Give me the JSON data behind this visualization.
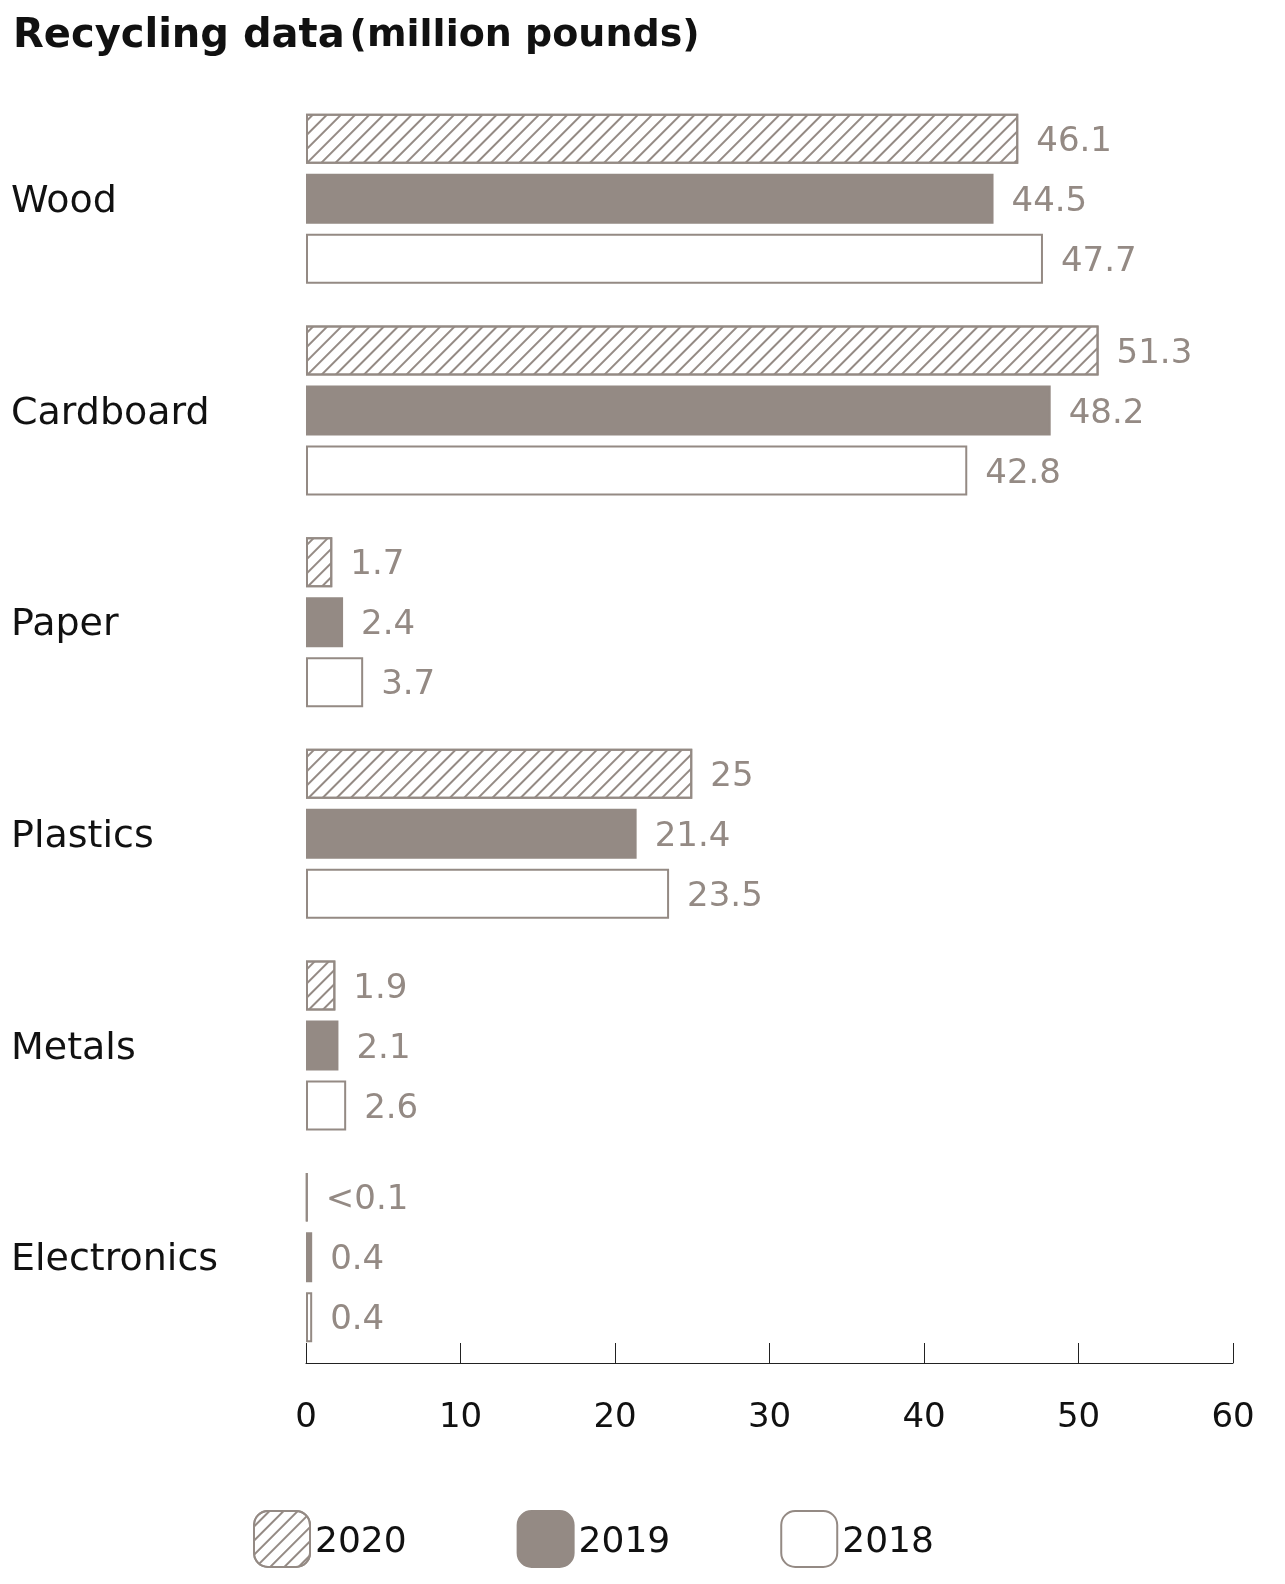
{
  "chart_data": {
    "type": "bar",
    "orientation": "horizontal",
    "title": "Recycling data",
    "subtitle": "(million pounds)",
    "categories": [
      "Wood",
      "Cardboard",
      "Paper",
      "Plastics",
      "Metals",
      "Electronics"
    ],
    "series": [
      {
        "name": "2020",
        "color": "#948a84",
        "values": [
          46.1,
          51.3,
          1.7,
          25,
          1.9,
          0.1
        ],
        "value_labels": [
          "46.1",
          "51.3",
          "1.7",
          "25",
          "1.9",
          "<0.1"
        ]
      },
      {
        "name": "2019",
        "color": "#948a84",
        "values": [
          44.5,
          48.2,
          2.4,
          21.4,
          2.1,
          0.4
        ],
        "value_labels": [
          "44.5",
          "48.2",
          "2.4",
          "21.4",
          "2.1",
          "0.4"
        ]
      },
      {
        "name": "2018",
        "color": "#ffffff",
        "values": [
          47.7,
          42.8,
          3.7,
          23.5,
          2.6,
          0.4
        ],
        "value_labels": [
          "47.7",
          "42.8",
          "3.7",
          "23.5",
          "2.6",
          "0.4"
        ]
      }
    ],
    "xlim": [
      0,
      60
    ],
    "xticks": [
      0,
      10,
      20,
      30,
      40,
      50,
      60
    ],
    "grid": false,
    "legend": "bottom"
  }
}
